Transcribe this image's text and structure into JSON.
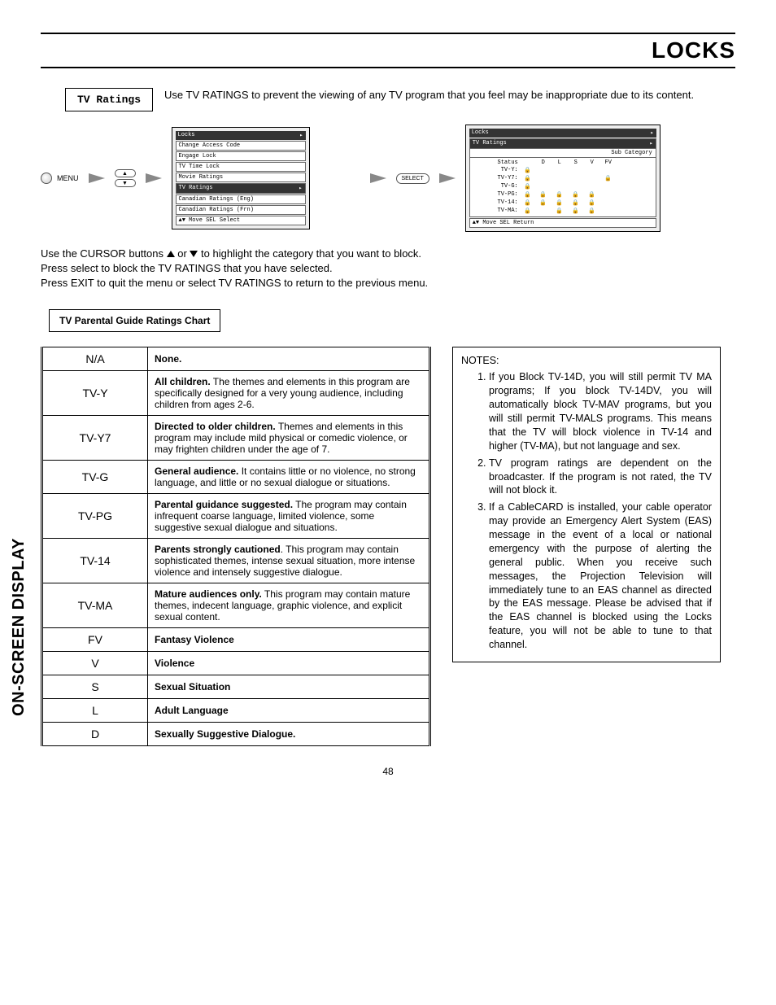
{
  "page": {
    "title": "LOCKS",
    "side_label": "ON-SCREEN DISPLAY",
    "page_number": "48"
  },
  "intro": {
    "box_label": "TV Ratings",
    "text": "Use TV RATINGS to prevent the viewing of any TV program that you feel may be inappropriate due to its content."
  },
  "menu_label": "MENU",
  "select_label": "SELECT",
  "osd_left": {
    "title": "Locks",
    "items": [
      "Change Access Code",
      "Engage Lock",
      "TV Time Lock",
      "Movie Ratings",
      "TV Ratings",
      "Canadian Ratings (Eng)",
      "Canadian Ratings (Frn)"
    ],
    "selected_index": 4,
    "footer": "▲▼ Move  SEL Select"
  },
  "osd_right": {
    "title": "Locks",
    "subtitle": "TV Ratings",
    "subcat_label": "Sub Category",
    "status_label": "Status",
    "cols": [
      "D",
      "L",
      "S",
      "V",
      "FV"
    ],
    "rows": [
      {
        "label": "TV-Y:",
        "locks": [
          1,
          0,
          0,
          0,
          0,
          0
        ]
      },
      {
        "label": "TV-Y7:",
        "locks": [
          1,
          0,
          0,
          0,
          0,
          1
        ]
      },
      {
        "label": "TV-G:",
        "locks": [
          1,
          0,
          0,
          0,
          0,
          0
        ]
      },
      {
        "label": "TV-PG:",
        "locks": [
          1,
          1,
          1,
          1,
          1,
          0
        ]
      },
      {
        "label": "TV-14:",
        "locks": [
          1,
          1,
          1,
          1,
          1,
          0
        ]
      },
      {
        "label": "TV-MA:",
        "locks": [
          1,
          0,
          1,
          1,
          1,
          0
        ]
      }
    ],
    "footer": "▲▼ Move  SEL Return"
  },
  "instructions": {
    "l1a": "Use the CURSOR buttons ",
    "l1b": " or ",
    "l1c": " to highlight the category that you want to block.",
    "l2": "Press select to block the TV RATINGS that you have selected.",
    "l3": "Press EXIT to quit the menu or select TV RATINGS to return to the previous menu."
  },
  "chart_label": "TV Parental Guide Ratings Chart",
  "ratings": [
    {
      "code": "N/A",
      "bold": "None.",
      "rest": ""
    },
    {
      "code": "TV-Y",
      "bold": "All children.",
      "rest": " The themes and elements in this program are specifically designed for a very young audience, including children from ages 2-6."
    },
    {
      "code": "TV-Y7",
      "bold": "Directed to older children.",
      "rest": " Themes and elements in this program may include mild physical or comedic violence, or may frighten children under the age of 7."
    },
    {
      "code": "TV-G",
      "bold": "General audience.",
      "rest": " It contains little or no violence, no strong language, and little or no sexual dialogue or situations."
    },
    {
      "code": "TV-PG",
      "bold": "Parental guidance suggested.",
      "rest": " The program may contain infrequent coarse language, limited violence, some suggestive sexual dialogue and situations."
    },
    {
      "code": "TV-14",
      "bold": "Parents strongly cautioned",
      "rest": ". This program may contain sophisticated themes, intense sexual situation, more intense violence and intensely suggestive dialogue."
    },
    {
      "code": "TV-MA",
      "bold": "Mature audiences only.",
      "rest": " This program may contain mature themes, indecent language, graphic violence, and explicit sexual content."
    },
    {
      "code": "FV",
      "bold": "Fantasy Violence",
      "rest": ""
    },
    {
      "code": "V",
      "bold": "Violence",
      "rest": ""
    },
    {
      "code": "S",
      "bold": "Sexual Situation",
      "rest": ""
    },
    {
      "code": "L",
      "bold": "Adult Language",
      "rest": ""
    },
    {
      "code": "D",
      "bold": "Sexually Suggestive Dialogue.",
      "rest": ""
    }
  ],
  "notes": {
    "header": "NOTES:",
    "items": [
      "If you Block TV-14D, you will still permit TV MA programs; If you block TV-14DV, you will automatically block TV-MAV programs, but you will still permit TV-MALS programs. This means that the TV will block violence in TV-14 and higher (TV-MA), but not language and sex.",
      "TV program ratings are dependent on the broadcaster.  If the program is not rated, the TV will not block it.",
      "If a CableCARD is installed, your cable operator may provide an Emergency Alert System (EAS) message in the event of a local or national emergency with the purpose of alerting the general public.  When you receive such messages, the Projection Television will immediately tune to an EAS channel as directed by the EAS message.  Please be advised that if the EAS channel is blocked using the Locks feature, you will not be able to tune to that channel."
    ]
  }
}
